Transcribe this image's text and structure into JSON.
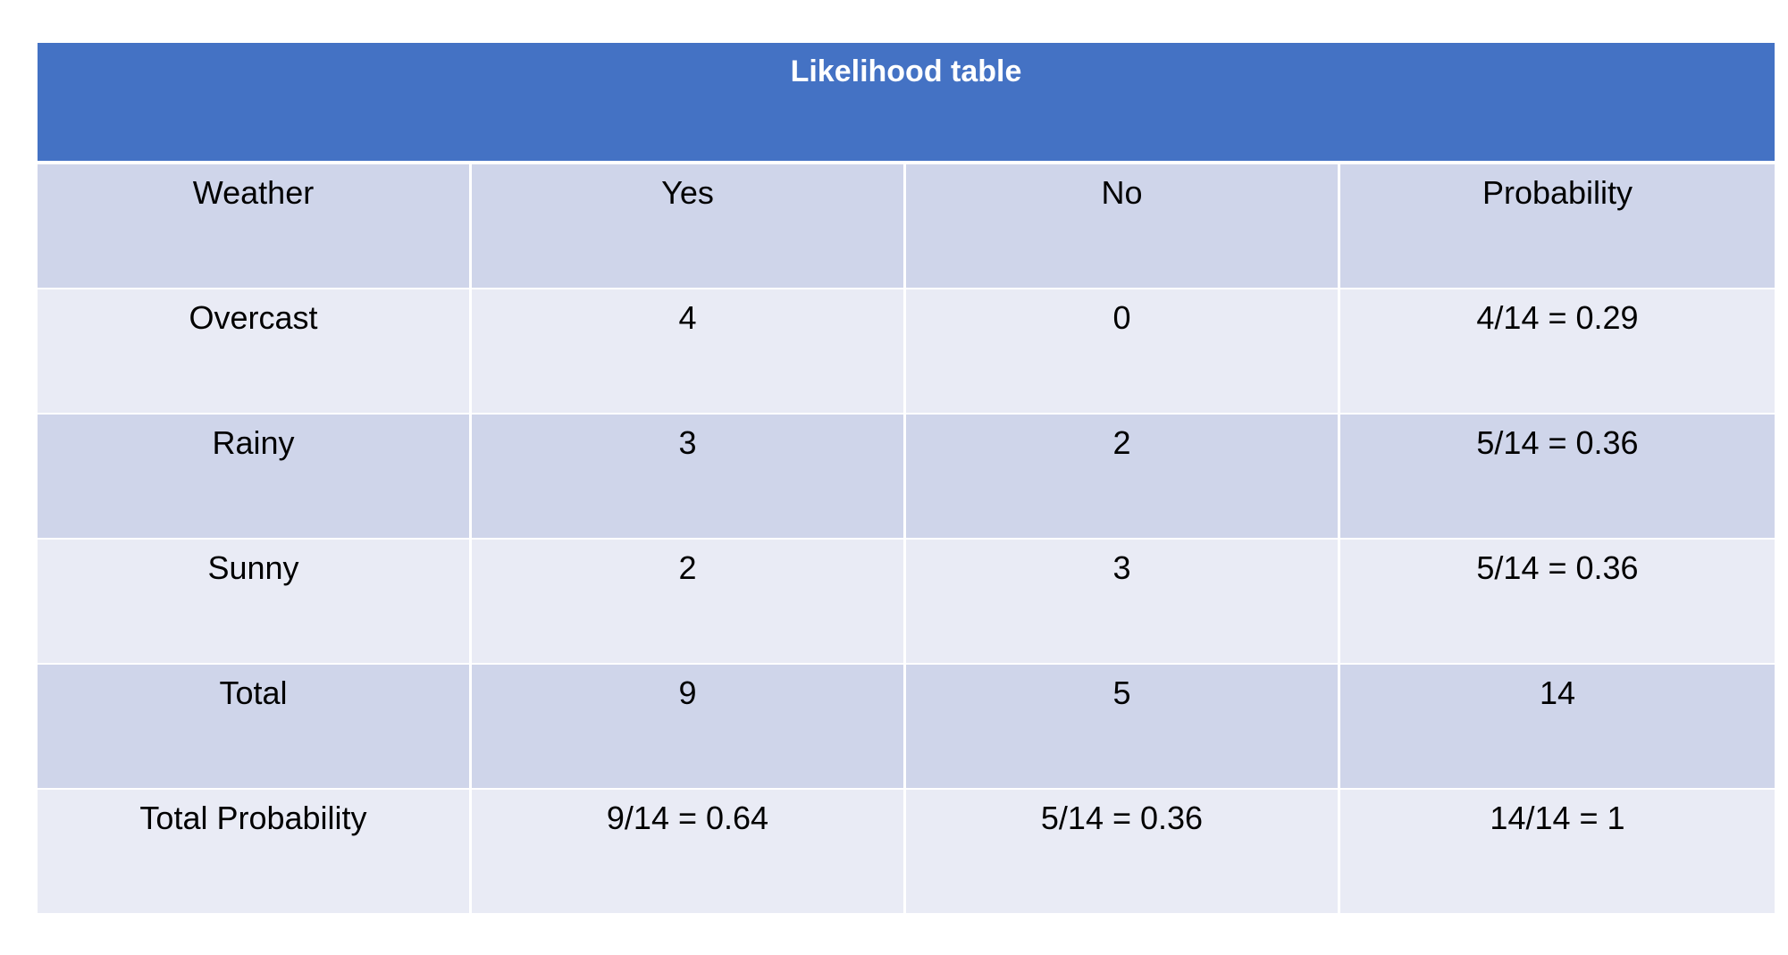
{
  "table": {
    "title": "Likelihood table",
    "headers": [
      "Weather",
      "Yes",
      "No",
      "Probability"
    ],
    "rows": [
      [
        "Overcast",
        "4",
        "0",
        "4/14 = 0.29"
      ],
      [
        "Rainy",
        "3",
        "2",
        "5/14 = 0.36"
      ],
      [
        "Sunny",
        "2",
        "3",
        "5/14 = 0.36"
      ],
      [
        "Total",
        "9",
        "5",
        "14"
      ],
      [
        "Total Probability",
        "9/14 = 0.64",
        "5/14 = 0.36",
        "14/14 = 1"
      ]
    ]
  },
  "colors": {
    "title_bg": "#4472c4",
    "row_dark": "#cfd5ea",
    "row_light": "#e9ebf5"
  }
}
